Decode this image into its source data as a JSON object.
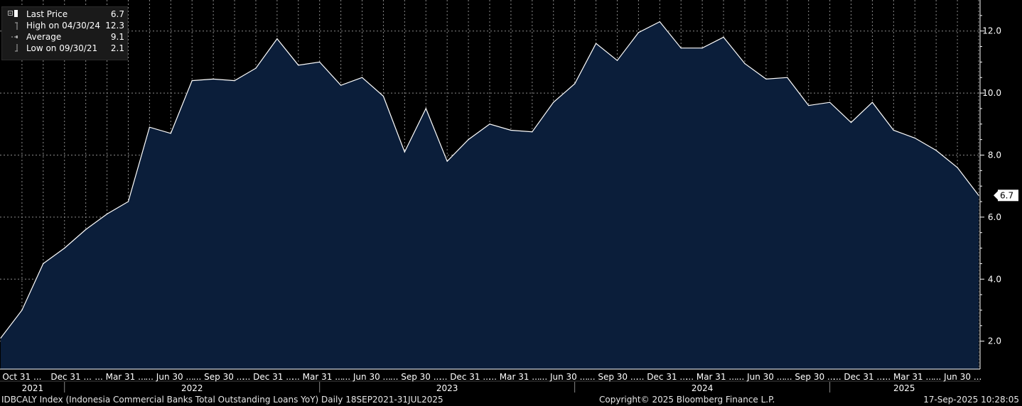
{
  "chart_data": {
    "type": "area",
    "ticker": "IDBCALY Index",
    "y_ticks": [
      2.0,
      4.0,
      6.0,
      8.0,
      10.0,
      12.0
    ],
    "ylim": [
      1.1,
      13.0
    ],
    "last_value_label": "6.7",
    "x_month_ticks": [
      "Oct 31 ...",
      "Dec 31 ...",
      "... Mar 31 ...",
      "... Jun 30 ...",
      "... Sep 30 ...",
      "... Dec 31 ...",
      "... Mar 31 ...",
      "... Jun 30 ...",
      "... Sep 30 ...",
      "... Dec 31 ...",
      "... Mar 31 ...",
      "... Jun 30 ...",
      "... Sep 30 ...",
      "... Dec 31 ...",
      "... Mar 31 ...",
      "... Jun 30 ...",
      "... Sep 30 ...",
      "... Dec 31 ...",
      "... Mar 31 ...",
      "... Jun 30 ..."
    ],
    "x_year_labels": [
      "2021",
      "2022",
      "2023",
      "2024",
      "2025"
    ],
    "grid": true,
    "series": [
      {
        "color": "#ffffff",
        "fill": "#0b1e3a",
        "x": [
          "2021-09-30",
          "2021-10-31",
          "2021-11-30",
          "2021-12-31",
          "2022-01-31",
          "2022-02-28",
          "2022-03-31",
          "2022-04-30",
          "2022-05-31",
          "2022-06-30",
          "2022-07-31",
          "2022-08-31",
          "2022-09-30",
          "2022-10-31",
          "2022-11-30",
          "2022-12-31",
          "2023-01-31",
          "2023-02-28",
          "2023-03-31",
          "2023-04-30",
          "2023-05-31",
          "2023-06-30",
          "2023-07-31",
          "2023-08-31",
          "2023-09-30",
          "2023-10-31",
          "2023-11-30",
          "2023-12-31",
          "2024-01-31",
          "2024-02-29",
          "2024-03-31",
          "2024-04-30",
          "2024-05-31",
          "2024-06-30",
          "2024-07-31",
          "2024-08-31",
          "2024-09-30",
          "2024-10-31",
          "2024-11-30",
          "2024-12-31",
          "2025-01-31",
          "2025-02-28",
          "2025-03-31",
          "2025-04-30",
          "2025-05-31",
          "2025-06-30",
          "2025-07-31"
        ],
        "values": [
          2.1,
          3.0,
          4.5,
          5.0,
          5.6,
          6.1,
          6.5,
          8.9,
          8.7,
          10.4,
          10.45,
          10.4,
          10.8,
          11.75,
          10.9,
          11.0,
          10.25,
          10.5,
          9.9,
          8.1,
          9.5,
          7.8,
          8.5,
          9.0,
          8.8,
          8.75,
          9.7,
          10.3,
          11.6,
          11.05,
          11.95,
          12.3,
          11.45,
          11.45,
          11.8,
          10.95,
          10.45,
          10.5,
          9.6,
          9.7,
          9.05,
          9.7,
          8.8,
          8.55,
          8.15,
          7.6,
          6.7
        ]
      }
    ],
    "legend": {
      "items": [
        {
          "label": "Last Price",
          "value": "6.7"
        },
        {
          "label": "High on 04/30/24",
          "value": "12.3"
        },
        {
          "label": "Average",
          "value": "9.1"
        },
        {
          "label": "Low on 09/30/21",
          "value": "2.1"
        }
      ],
      "position": "top-left"
    },
    "colors": {
      "background": "#000000",
      "area_fill": "#0b1e3a",
      "line": "#ffffff",
      "grid": "#8a8a8a",
      "axis": "#ffffff"
    }
  },
  "footer": {
    "left": "IDBCALY Index (Indonesia Commercial Banks Total Outstanding Loans YoY)  Daily 18SEP2021-31JUL2025",
    "center": "Copyright© 2025 Bloomberg Finance L.P.",
    "right": "17-Sep-2025 10:28:05"
  }
}
